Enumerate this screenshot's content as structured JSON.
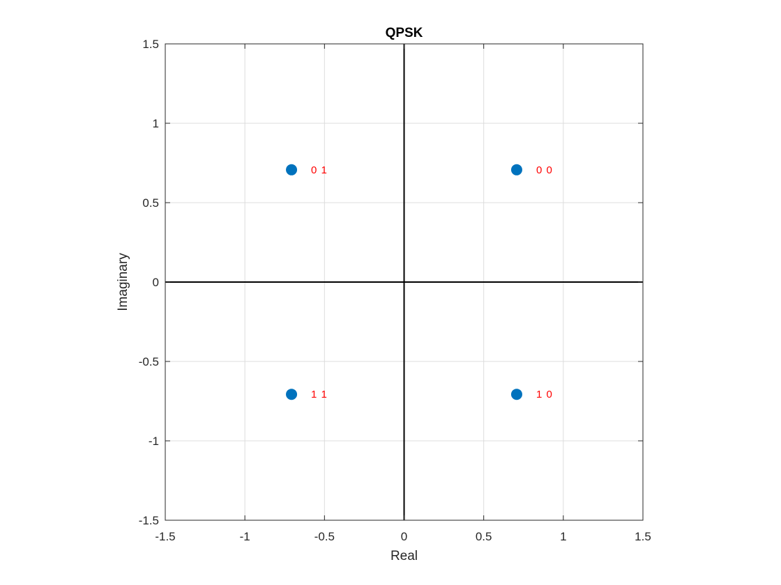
{
  "chart_data": {
    "type": "scatter",
    "title": "QPSK",
    "xlabel": "Real",
    "ylabel": "Imaginary",
    "xlim": [
      -1.5,
      1.5
    ],
    "ylim": [
      -1.5,
      1.5
    ],
    "grid": true,
    "xticks": [
      -1.5,
      -1,
      -0.5,
      0,
      0.5,
      1,
      1.5
    ],
    "yticks": [
      -1.5,
      -1,
      -0.5,
      0,
      0.5,
      1,
      1.5
    ],
    "xtick_labels": [
      "-1.5",
      "-1",
      "-0.5",
      "0",
      "0.5",
      "1",
      "1.5"
    ],
    "ytick_labels": [
      "-1.5",
      "-1",
      "-0.5",
      "0",
      "0.5",
      "1",
      "1.5"
    ],
    "series": [
      {
        "points": [
          {
            "x": 0.7071,
            "y": 0.7071,
            "label": "0 0"
          },
          {
            "x": -0.7071,
            "y": 0.7071,
            "label": "0 1"
          },
          {
            "x": -0.7071,
            "y": -0.7071,
            "label": "1 1"
          },
          {
            "x": 0.7071,
            "y": -0.7071,
            "label": "1 0"
          }
        ]
      }
    ],
    "colors": {
      "marker": "#0072BD",
      "label": "#ff0000",
      "grid": "#dcdcdc",
      "axis": "#262626",
      "zero_lines": "#000000"
    }
  }
}
